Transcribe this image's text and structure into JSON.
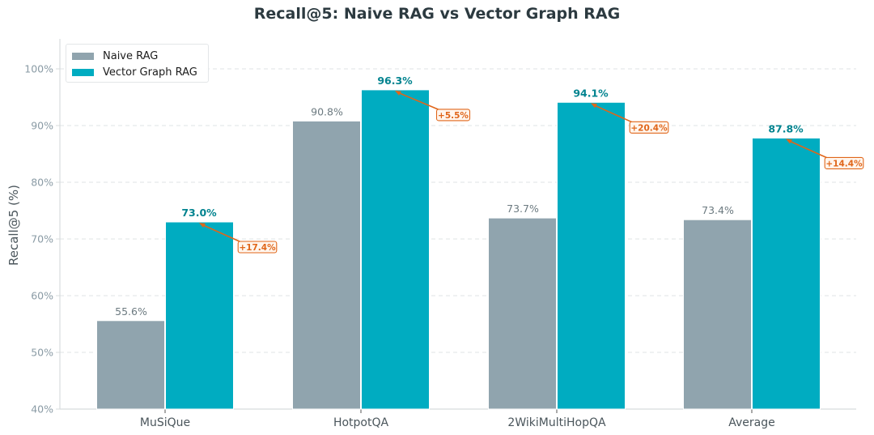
{
  "chart_data": {
    "type": "bar",
    "title": "Recall@5: Naive RAG vs Vector Graph RAG",
    "xlabel": "",
    "ylabel": "Recall@5 (%)",
    "ylim": [
      40,
      105
    ],
    "yticks": [
      40,
      50,
      60,
      70,
      80,
      90,
      100
    ],
    "ytick_labels": [
      "40%",
      "50%",
      "60%",
      "70%",
      "80%",
      "90%",
      "100%"
    ],
    "grid": "horizontal dashed",
    "legend_position": "upper left",
    "categories": [
      "MuSiQue",
      "HotpotQA",
      "2WikiMultiHopQA",
      "Average"
    ],
    "series": [
      {
        "name": "Naive RAG",
        "color": "#90a4ae",
        "values": [
          55.6,
          90.8,
          73.7,
          73.4
        ],
        "labels": [
          "55.6%",
          "90.8%",
          "73.7%",
          "73.4%"
        ]
      },
      {
        "name": "Vector Graph RAG",
        "color": "#00acc1",
        "values": [
          73.0,
          96.3,
          94.1,
          87.8
        ],
        "labels": [
          "73.0%",
          "96.3%",
          "94.1%",
          "87.8%"
        ]
      }
    ],
    "annotations": [
      {
        "category": "MuSiQue",
        "text": "+17.4%"
      },
      {
        "category": "HotpotQA",
        "text": "+5.5%"
      },
      {
        "category": "2WikiMultiHopQA",
        "text": "+20.4%"
      },
      {
        "category": "Average",
        "text": "+14.4%"
      }
    ]
  },
  "colors": {
    "title": "#2c3a40",
    "axis_text": "#8a9ba5",
    "category_text": "#4a555b",
    "naive_label": "#6c7a80",
    "vgr_label": "#00838f",
    "annotation": "#e0661a",
    "annotation_bg": "#fff6ee",
    "grid": "#dfe3e5",
    "spine": "#d8dcde"
  },
  "legend": {
    "items": [
      {
        "label": "Naive RAG",
        "color": "#90a4ae"
      },
      {
        "label": "Vector Graph RAG",
        "color": "#00acc1"
      }
    ]
  }
}
